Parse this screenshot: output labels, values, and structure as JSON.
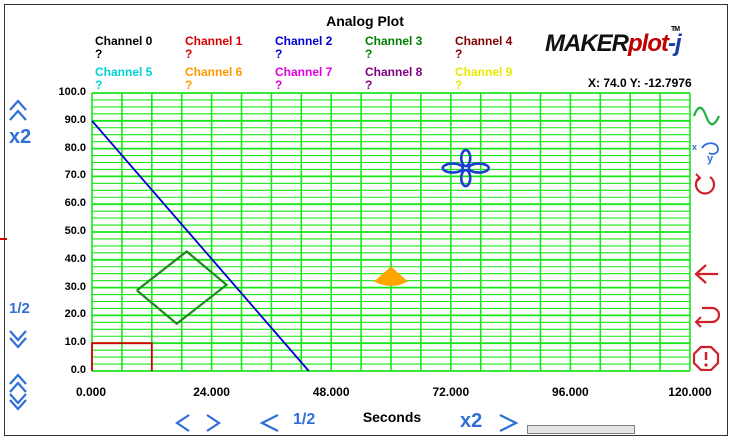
{
  "app": {
    "title": "Analog Plot",
    "logo_text_a": "MAKER",
    "logo_text_b": "plot",
    "logo_text_c": "-j",
    "logo_tm": "TM"
  },
  "channels": [
    {
      "label": "Channel 0",
      "value": "?",
      "color": "#000000"
    },
    {
      "label": "Channel 1",
      "value": "?",
      "color": "#d40000"
    },
    {
      "label": "Channel 2",
      "value": "?",
      "color": "#0000d4"
    },
    {
      "label": "Channel 3",
      "value": "?",
      "color": "#008000"
    },
    {
      "label": "Channel 4",
      "value": "?",
      "color": "#800000"
    },
    {
      "label": "Channel 5",
      "value": "?",
      "color": "#00d4d4"
    },
    {
      "label": "Channel 6",
      "value": "?",
      "color": "#ff9900"
    },
    {
      "label": "Channel 7",
      "value": "?",
      "color": "#e000e0"
    },
    {
      "label": "Channel 8",
      "value": "?",
      "color": "#800080"
    },
    {
      "label": "Channel 9",
      "value": "?",
      "color": "#e8e800"
    }
  ],
  "cursor_readout": {
    "text": "X: 74.0   Y: -12.7976"
  },
  "chart_data": {
    "type": "line",
    "title": "Analog Plot",
    "xlabel": "Seconds",
    "ylabel": "",
    "xlim": [
      0,
      120
    ],
    "ylim": [
      0,
      100
    ],
    "x_tick_labels": [
      "0.000",
      "24.000",
      "48.000",
      "72.000",
      "96.000",
      "120.000"
    ],
    "y_tick_labels": [
      "0.0",
      "10.0",
      "20.0",
      "30.0",
      "40.0",
      "50.0",
      "60.0",
      "70.0",
      "80.0",
      "90.0",
      "100.0"
    ],
    "grid": true,
    "grid_color": "#19e619",
    "series": [
      {
        "color": "#0000d4",
        "points": [
          [
            0,
            90
          ],
          [
            43.5,
            0
          ]
        ]
      },
      {
        "color": "#d40000",
        "points": [
          [
            0,
            0
          ],
          [
            0,
            10
          ],
          [
            12,
            10
          ],
          [
            12,
            0
          ]
        ]
      },
      {
        "color": "#1a8a1a",
        "points": [
          [
            9,
            29
          ],
          [
            19,
            43
          ],
          [
            27,
            31
          ],
          [
            17,
            17
          ],
          [
            9,
            29
          ]
        ]
      }
    ],
    "markers": [
      {
        "shape": "pie",
        "color": "#ffa500",
        "at": [
          60,
          34
        ]
      },
      {
        "shape": "crosshair",
        "color": "#1a3fd0",
        "at": [
          75,
          73
        ]
      }
    ]
  },
  "controls": {
    "zoom_in_y": "x2",
    "zoom_out_y": "1/2",
    "zoom_in_x": "x2",
    "zoom_out_x": "1/2",
    "scroll_left_right": "‹ ›",
    "icons": [
      "sine-wave-icon",
      "xy-mode-icon",
      "reset-icon",
      "back-icon",
      "undo-icon",
      "stop-icon"
    ],
    "scroll_up_icon": "chevron-up-icon",
    "scroll_down_icon": "chevron-down-icon"
  },
  "colors": {
    "ctrl_blue": "#2f6fd8",
    "ctrl_green": "#20b040",
    "ctrl_red": "#d0202a"
  }
}
